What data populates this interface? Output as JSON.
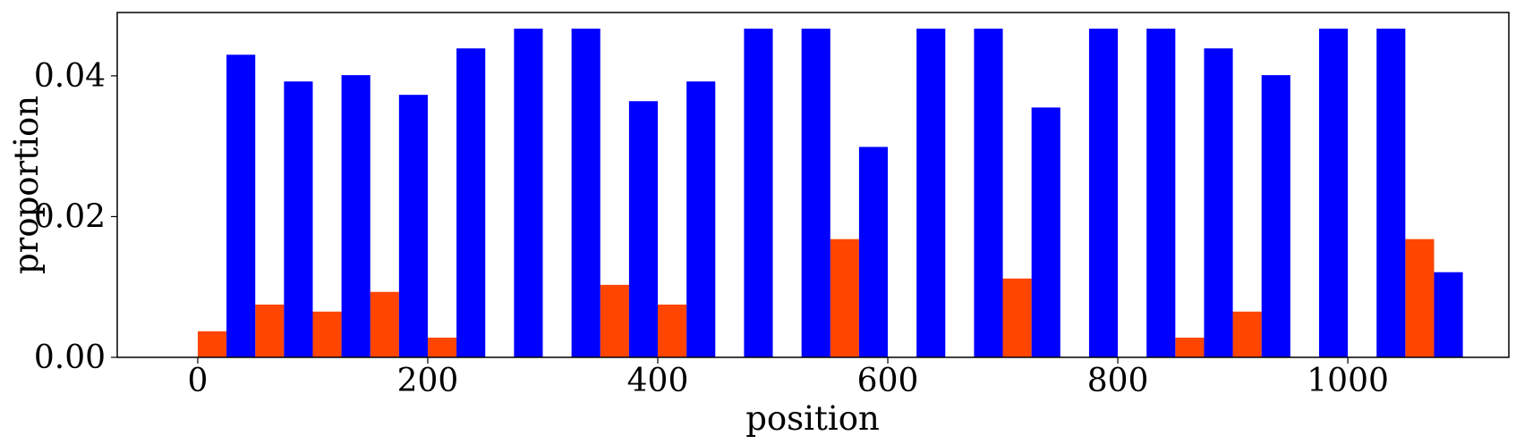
{
  "chart_data": {
    "type": "bar",
    "xlabel": "position",
    "ylabel": "proportion",
    "xlim": [
      -70,
      1140
    ],
    "ylim": [
      0,
      0.049
    ],
    "xticks": [
      0,
      200,
      400,
      600,
      800,
      1000
    ],
    "xtick_labels": [
      "0",
      "200",
      "400",
      "600",
      "800",
      "1000"
    ],
    "yticks": [
      0.0,
      0.02,
      0.04
    ],
    "ytick_labels": [
      "0.00",
      "0.02",
      "0.04"
    ],
    "bar_width": 25,
    "grid": false,
    "series": [
      {
        "color": "#ff4500",
        "x": [
          0,
          50,
          100,
          150,
          200,
          250,
          300,
          350,
          400,
          450,
          500,
          550,
          600,
          650,
          700,
          750,
          800,
          850,
          900,
          950,
          1000,
          1050
        ],
        "values": [
          0.0037,
          0.0075,
          0.0065,
          0.0093,
          0.0028,
          0,
          0,
          0.0103,
          0.0075,
          0,
          0,
          0.0168,
          0,
          0,
          0.0112,
          0,
          0,
          0.0028,
          0.0065,
          0,
          0,
          0.0168
        ]
      },
      {
        "color": "#0000ff",
        "x": [
          25,
          75,
          125,
          175,
          225,
          275,
          325,
          375,
          425,
          475,
          525,
          575,
          625,
          675,
          725,
          775,
          825,
          875,
          925,
          975,
          1025,
          1075
        ],
        "values": [
          0.043,
          0.0392,
          0.0401,
          0.0373,
          0.0439,
          0.0467,
          0.0467,
          0.0364,
          0.0392,
          0.0467,
          0.0467,
          0.0299,
          0.0467,
          0.0467,
          0.0355,
          0.0467,
          0.0467,
          0.0439,
          0.0401,
          0.0467,
          0.0467,
          0.0121
        ]
      }
    ]
  }
}
